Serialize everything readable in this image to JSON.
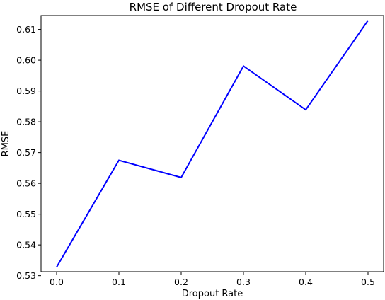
{
  "chart_data": {
    "type": "line",
    "title": "RMSE of Different Dropout Rate",
    "xlabel": "Dropout Rate",
    "ylabel": "RMSE",
    "x": [
      0.0,
      0.1,
      0.2,
      0.3,
      0.4,
      0.5
    ],
    "x_tick_labels": [
      "0.0",
      "0.1",
      "0.2",
      "0.3",
      "0.4",
      "0.5"
    ],
    "y_ticks": [
      0.53,
      0.54,
      0.55,
      0.56,
      0.57,
      0.58,
      0.59,
      0.6,
      0.61
    ],
    "y_tick_labels": [
      "0.53",
      "0.54",
      "0.55",
      "0.56",
      "0.57",
      "0.58",
      "0.59",
      "0.60",
      "0.61"
    ],
    "xlim": [
      -0.025,
      0.525
    ],
    "ylim": [
      0.5313,
      0.6145
    ],
    "grid": false,
    "series": [
      {
        "color": "#0000ff",
        "values": [
          0.5328,
          0.5675,
          0.5619,
          0.5981,
          0.5839,
          0.6129
        ]
      }
    ]
  }
}
